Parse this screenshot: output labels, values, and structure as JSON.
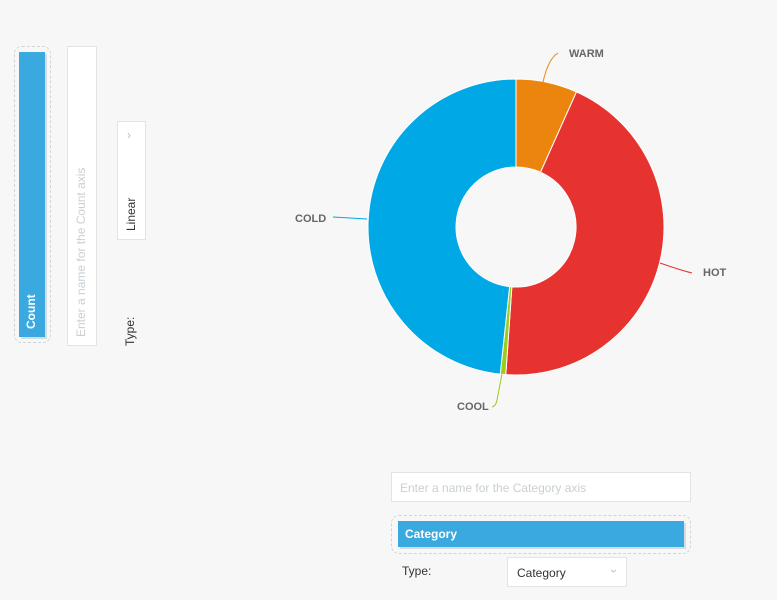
{
  "count_axis": {
    "field_label": "Count",
    "name_placeholder": "Enter a name for the Count axis",
    "type_label": "Type:",
    "type_value": "Linear"
  },
  "category_axis": {
    "name_placeholder": "Enter a name for the Category axis",
    "field_label": "Category",
    "type_label": "Type:",
    "type_value": "Category"
  },
  "colors": {
    "accent": "#3aa9e0",
    "cold": "#00a8e6",
    "warm": "#ec850d",
    "hot": "#e6332f",
    "cool": "#9ccb1b"
  },
  "chart_data": {
    "type": "pie",
    "variant": "donut",
    "title": "",
    "categories": [
      "WARM",
      "HOT",
      "COOL",
      "COLD"
    ],
    "values": [
      6.7,
      44.4,
      0.6,
      48.3
    ],
    "units": "percent of total (estimated)",
    "colors": [
      "#ec850d",
      "#e6332f",
      "#9ccb1b",
      "#00a8e6"
    ],
    "labels": [
      "WARM",
      "HOT",
      "COOL",
      "COLD"
    ],
    "legend": "none (direct labels with leader lines)",
    "start_angle": "12 o'clock, clockwise"
  }
}
